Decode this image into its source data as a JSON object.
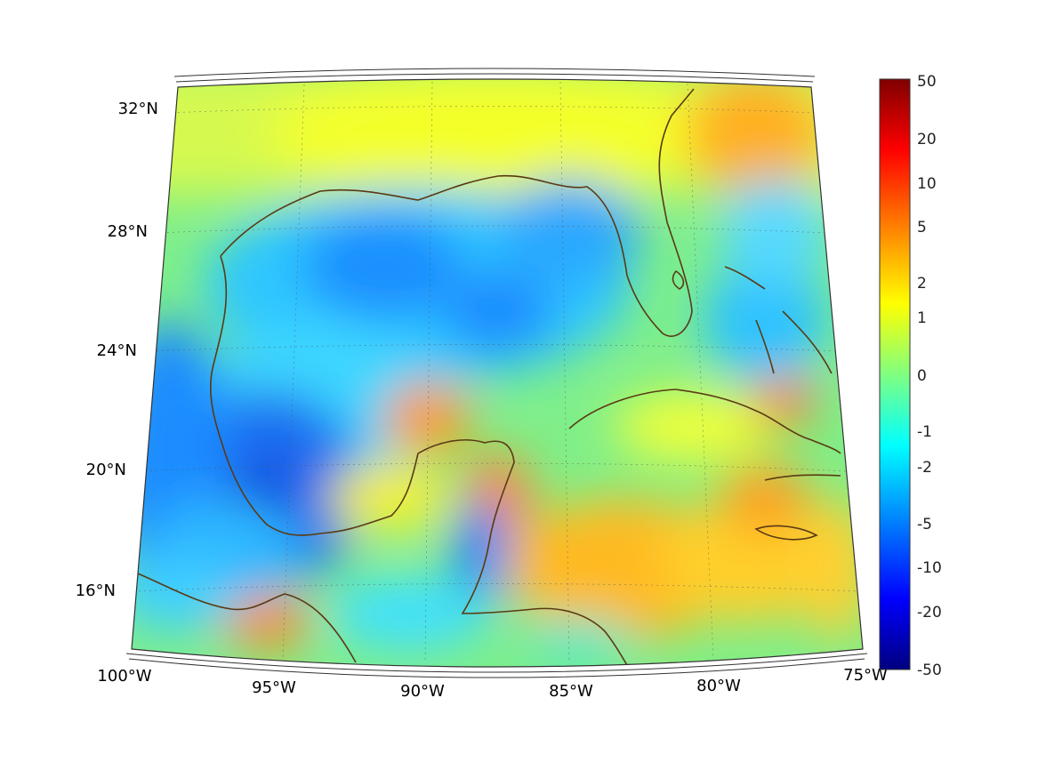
{
  "map": {
    "lon_labels": [
      "100°W",
      "95°W",
      "90°W",
      "85°W",
      "80°W",
      "75°W"
    ],
    "lat_labels": [
      "32°N",
      "28°N",
      "24°N",
      "20°N",
      "16°N"
    ]
  },
  "colorbar": {
    "ticks": [
      "50",
      "20",
      "10",
      "5",
      "2",
      "1",
      "0",
      "-1",
      "-2",
      "-5",
      "-10",
      "-20",
      "-50"
    ],
    "colors": [
      "#800000",
      "#ff0000",
      "#ff8000",
      "#ffff00",
      "#80ff80",
      "#00ffff",
      "#0080ff",
      "#0000ff",
      "#000080"
    ]
  },
  "land_color": "#5a3a14"
}
